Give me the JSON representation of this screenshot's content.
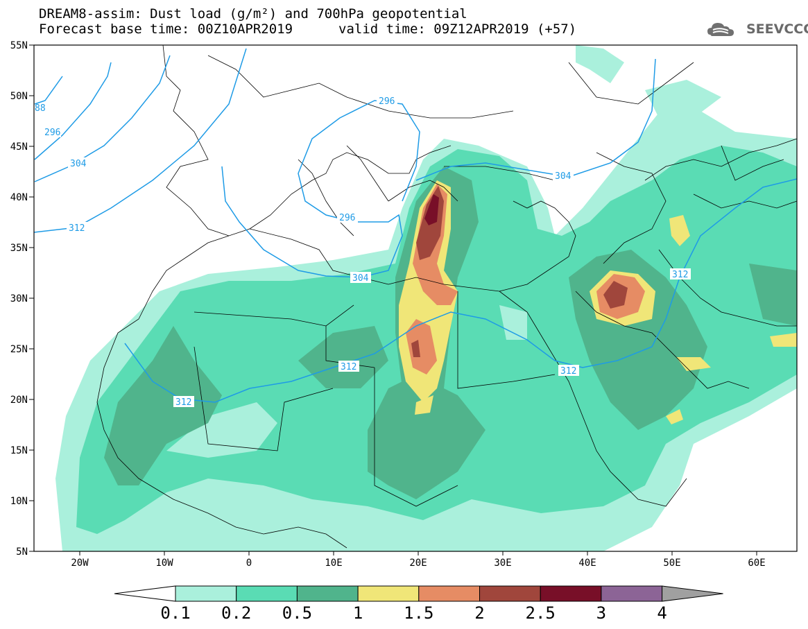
{
  "header": {
    "title_line1": "DREAM8-assim: Dust load (g/m²) and 700hPa geopotential",
    "title_line2_base": "Forecast base time: 00Z10APR2019",
    "title_line2_valid": "valid time: 09Z12APR2019 (+57)",
    "logo_text": "SEEVCCC"
  },
  "axes": {
    "y_labels": [
      "55N",
      "50N",
      "45N",
      "40N",
      "35N",
      "30N",
      "25N",
      "20N",
      "15N",
      "10N",
      "5N"
    ],
    "x_labels": [
      "20W",
      "10W",
      "0",
      "10E",
      "20E",
      "30E",
      "40E",
      "50E",
      "60E"
    ]
  },
  "contours": {
    "line_color": "#1e9be6",
    "labels": [
      "296",
      "296",
      "304",
      "296",
      "312",
      "304",
      "304",
      "312",
      "312",
      "312",
      "312",
      "88"
    ]
  },
  "colorbar": {
    "levels": [
      "0.1",
      "0.2",
      "0.5",
      "1",
      "1.5",
      "2",
      "2.5",
      "3",
      "4"
    ],
    "colors": [
      "#aaf0dc",
      "#5adcb4",
      "#50b48c",
      "#f0e678",
      "#e68c64",
      "#a0463c",
      "#780f28",
      "#8c6496",
      "#a0a0a0"
    ]
  }
}
